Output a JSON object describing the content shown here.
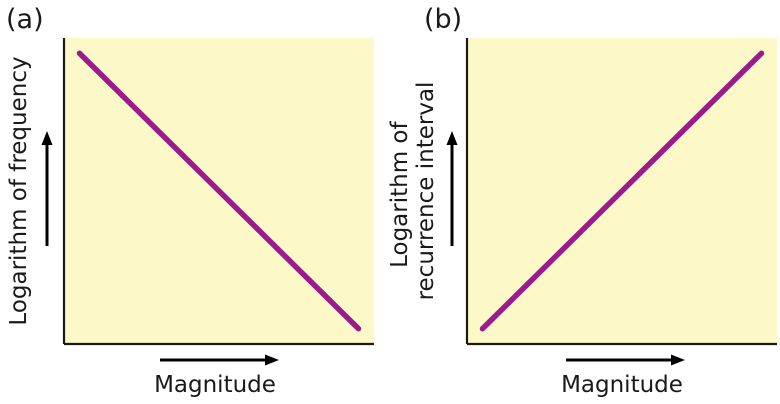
{
  "colors": {
    "plot_background": "#fdf8c8",
    "series": "#9b1b8e",
    "axis": "#1a1a1a"
  },
  "chart_data": [
    {
      "type": "line",
      "panel_label": "(a)",
      "xlabel": "Magnitude",
      "ylabel": "Logarithm of frequency",
      "ylabel_lines": [
        "Logarithm of frequency"
      ],
      "ticks": false,
      "grid": false,
      "xlim": [
        0,
        1
      ],
      "ylim": [
        0,
        1
      ],
      "series": [
        {
          "x": [
            0.05,
            0.95
          ],
          "y": [
            0.95,
            0.05
          ]
        }
      ]
    },
    {
      "type": "line",
      "panel_label": "(b)",
      "xlabel": "Magnitude",
      "ylabel": "Logarithm of recurrence interval",
      "ylabel_lines": [
        "Logarithm of",
        "recurrence interval"
      ],
      "ticks": false,
      "grid": false,
      "xlim": [
        0,
        1
      ],
      "ylim": [
        0,
        1
      ],
      "series": [
        {
          "x": [
            0.05,
            0.95
          ],
          "y": [
            0.05,
            0.95
          ]
        }
      ]
    }
  ]
}
